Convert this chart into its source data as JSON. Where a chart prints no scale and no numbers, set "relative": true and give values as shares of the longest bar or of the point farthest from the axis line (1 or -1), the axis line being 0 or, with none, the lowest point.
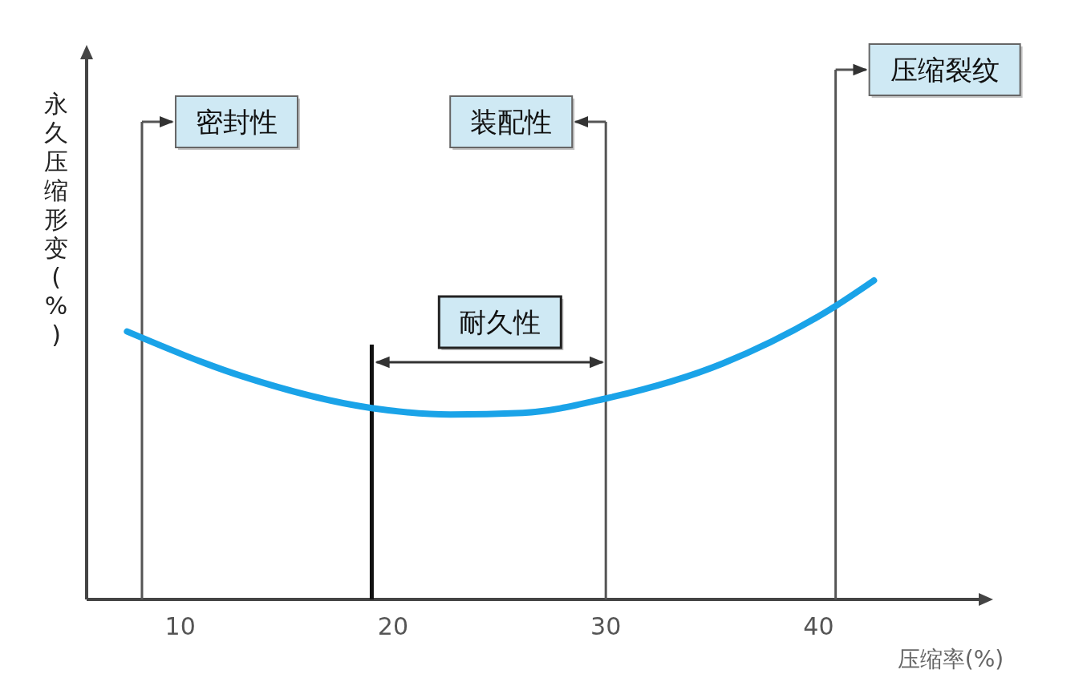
{
  "chart_data": {
    "type": "line",
    "relative": true,
    "xlabel": "压缩率(%)",
    "ylabel": "永久压缩形变(%)",
    "xlim": [
      5.6,
      47.6
    ],
    "xticks": [
      10,
      20,
      30,
      40
    ],
    "series": [
      {
        "color": "#1aa3e8",
        "x": [
          7.5,
          12.9,
          19.0,
          22.7,
          26.1,
          30.0,
          35.5,
          40.8,
          42.6
        ],
        "values": [
          0.84,
          0.7,
          0.6,
          0.58,
          0.585,
          0.63,
          0.74,
          0.92,
          1
        ]
      }
    ],
    "ref_lines": [
      {
        "axis": "x",
        "value": 8.2,
        "label": "密封性",
        "color": "#555555"
      },
      {
        "axis": "x",
        "value": 19,
        "color": "#111111"
      },
      {
        "axis": "x",
        "value": 30,
        "label": "装配性",
        "color": "#555555"
      },
      {
        "axis": "x",
        "value": 40.8,
        "label": "压缩裂纹",
        "color": "#555555"
      }
    ],
    "annotations": [
      "耐久性"
    ]
  }
}
